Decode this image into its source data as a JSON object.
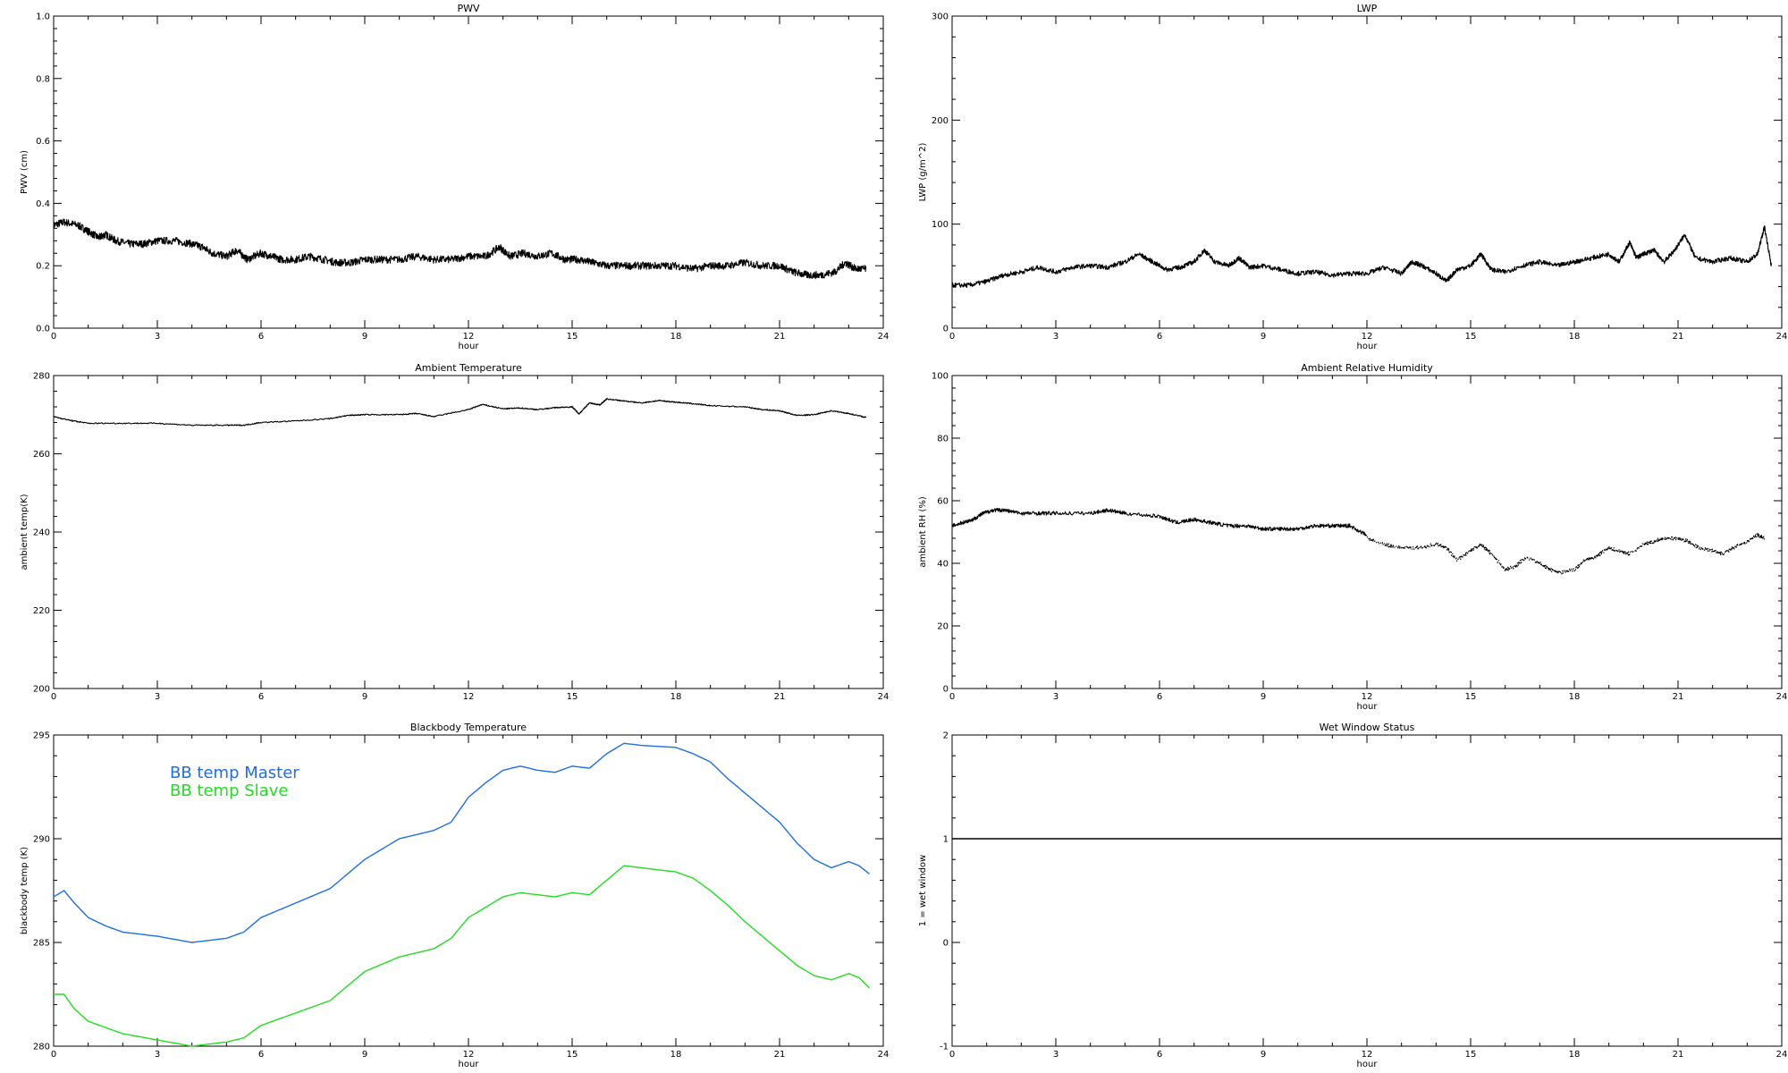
{
  "chart_data": [
    {
      "id": "pwv",
      "type": "line",
      "title": "PWV",
      "xlabel": "hour",
      "ylabel": "PWV (cm)",
      "xlim": [
        0,
        24
      ],
      "ylim": [
        0.0,
        1.0
      ],
      "xticks": [
        "0",
        "3",
        "6",
        "9",
        "12",
        "15",
        "18",
        "21",
        "24"
      ],
      "yticks": [
        "0.0",
        "0.2",
        "0.4",
        "0.6",
        "0.8",
        "1.0"
      ],
      "noise": 0.012,
      "series": [
        {
          "color": "#000000",
          "dots": false,
          "x": [
            0,
            0.3,
            0.7,
            1.0,
            1.3,
            1.5,
            1.8,
            2.2,
            2.6,
            3.0,
            3.5,
            4.0,
            4.3,
            4.6,
            5.0,
            5.3,
            5.6,
            6.0,
            6.3,
            6.6,
            7.0,
            7.4,
            7.8,
            8.2,
            8.6,
            9.0,
            9.5,
            10.0,
            10.5,
            11.0,
            11.5,
            12.0,
            12.5,
            12.9,
            13.2,
            13.6,
            14.0,
            14.4,
            14.8,
            15.2,
            15.6,
            16.0,
            16.5,
            17.0,
            17.5,
            18.0,
            18.5,
            19.0,
            19.5,
            20.0,
            20.5,
            21.0,
            21.4,
            21.8,
            22.2,
            22.6,
            22.9,
            23.2,
            23.5
          ],
          "y": [
            0.33,
            0.34,
            0.33,
            0.31,
            0.29,
            0.3,
            0.28,
            0.27,
            0.27,
            0.28,
            0.28,
            0.27,
            0.26,
            0.24,
            0.23,
            0.25,
            0.22,
            0.24,
            0.23,
            0.22,
            0.22,
            0.23,
            0.22,
            0.21,
            0.21,
            0.22,
            0.22,
            0.22,
            0.23,
            0.22,
            0.22,
            0.23,
            0.23,
            0.26,
            0.23,
            0.24,
            0.23,
            0.24,
            0.22,
            0.22,
            0.21,
            0.2,
            0.2,
            0.2,
            0.2,
            0.2,
            0.19,
            0.2,
            0.2,
            0.21,
            0.2,
            0.2,
            0.18,
            0.17,
            0.17,
            0.18,
            0.21,
            0.19,
            0.19
          ]
        }
      ]
    },
    {
      "id": "lwp",
      "type": "line",
      "title": "LWP",
      "xlabel": "hour",
      "ylabel": "LWP (g/m^2)",
      "xlim": [
        0,
        24
      ],
      "ylim": [
        -50,
        350
      ],
      "xticks": [
        "0",
        "3",
        "6",
        "9",
        "12",
        "15",
        "18",
        "21",
        "24"
      ],
      "yticks": [
        "0",
        "100",
        "200",
        "300"
      ],
      "noise": 3,
      "series": [
        {
          "color": "#000000",
          "dots": false,
          "x": [
            0,
            0.5,
            1.0,
            1.5,
            2.0,
            2.5,
            3.0,
            3.5,
            4.0,
            4.5,
            5.0,
            5.4,
            5.8,
            6.2,
            6.6,
            7.0,
            7.3,
            7.6,
            8.0,
            8.3,
            8.6,
            9.0,
            9.5,
            10.0,
            10.5,
            11.0,
            11.5,
            12.0,
            12.5,
            13.0,
            13.3,
            13.6,
            14.0,
            14.3,
            14.6,
            15.0,
            15.3,
            15.6,
            16.0,
            16.5,
            17.0,
            17.5,
            18.0,
            18.5,
            19.0,
            19.3,
            19.6,
            19.8,
            20.0,
            20.3,
            20.6,
            20.9,
            21.2,
            21.5,
            22.0,
            22.5,
            23.0,
            23.3,
            23.5,
            23.7
          ],
          "y": [
            5,
            5,
            10,
            18,
            22,
            28,
            22,
            28,
            30,
            28,
            35,
            45,
            35,
            25,
            28,
            35,
            50,
            35,
            30,
            40,
            28,
            30,
            25,
            20,
            22,
            18,
            20,
            20,
            28,
            20,
            35,
            30,
            20,
            10,
            25,
            30,
            45,
            25,
            22,
            30,
            35,
            30,
            35,
            40,
            45,
            35,
            60,
            40,
            45,
            50,
            35,
            50,
            70,
            40,
            35,
            40,
            35,
            45,
            80,
            30
          ]
        }
      ]
    },
    {
      "id": "ambient-temp",
      "type": "line",
      "title": "Ambient Temperature",
      "xlabel": "",
      "ylabel": "ambient temp(K)",
      "xlim": [
        0,
        24
      ],
      "ylim": [
        200,
        280
      ],
      "xticks": [
        "0",
        "3",
        "6",
        "9",
        "12",
        "15",
        "18",
        "21",
        "24"
      ],
      "yticks": [
        "200",
        "220",
        "240",
        "260",
        "280"
      ],
      "noise": 0.15,
      "series": [
        {
          "color": "#000000",
          "dots": false,
          "x": [
            0,
            0.5,
            1.0,
            2.0,
            3.0,
            4.0,
            5.0,
            5.5,
            6.0,
            7.0,
            8.0,
            8.5,
            9.0,
            10.0,
            10.5,
            11.0,
            12.0,
            12.4,
            13.0,
            13.5,
            14.0,
            14.5,
            15.0,
            15.2,
            15.5,
            15.8,
            16.0,
            16.5,
            17.0,
            17.5,
            18.0,
            18.5,
            19.0,
            20.0,
            20.5,
            21.0,
            21.5,
            22.0,
            22.5,
            23.0,
            23.5
          ],
          "y": [
            269.5,
            268.5,
            267.8,
            267.8,
            267.8,
            267.3,
            267.3,
            267.3,
            268.0,
            268.4,
            269.0,
            269.8,
            270.0,
            270.0,
            270.3,
            269.5,
            271.3,
            272.6,
            271.5,
            271.7,
            271.3,
            271.8,
            272.0,
            270.2,
            273.0,
            272.5,
            274.0,
            273.5,
            273.0,
            273.6,
            273.2,
            272.8,
            272.3,
            272.0,
            271.3,
            271.0,
            269.8,
            270.0,
            271.0,
            270.3,
            269.3
          ]
        }
      ]
    },
    {
      "id": "ambient-rh",
      "type": "line",
      "title": "Ambient Relative Humidity",
      "xlabel": "hour",
      "ylabel": "ambient RH (%)",
      "xlim": [
        0,
        24
      ],
      "ylim": [
        0,
        100
      ],
      "xticks": [
        "0",
        "3",
        "6",
        "9",
        "12",
        "15",
        "18",
        "21",
        "24"
      ],
      "yticks": [
        "0",
        "20",
        "40",
        "60",
        "80",
        "100"
      ],
      "noise": 0.6,
      "series": [
        {
          "color": "#000000",
          "dots": false,
          "x": [
            0,
            0.3,
            0.6,
            0.9,
            1.2,
            1.5,
            2.0,
            2.5,
            3.0,
            4.0,
            4.5,
            5.0,
            6.0,
            6.5,
            7.0,
            7.5,
            8.0,
            8.5,
            9.0,
            9.5,
            10.0,
            10.5,
            11.0,
            11.5,
            12.0
          ],
          "y": [
            52,
            53,
            54,
            56,
            57,
            57,
            56,
            56,
            56,
            56,
            57,
            56,
            55,
            53,
            54,
            53,
            52,
            52,
            51,
            51,
            51,
            52,
            52,
            52,
            49
          ]
        },
        {
          "color": "#000000",
          "dots": true,
          "x": [
            12,
            12.5,
            13,
            13.5,
            14,
            14.3,
            14.6,
            15,
            15.3,
            15.6,
            16,
            16.3,
            16.6,
            17,
            17.3,
            17.6,
            18,
            18.3,
            18.6,
            19,
            19.3,
            19.6,
            20,
            20.3,
            20.6,
            21,
            21.3,
            21.6,
            22,
            22.3,
            22.6,
            23,
            23.3,
            23.5
          ],
          "y": [
            48,
            46,
            45,
            45,
            46,
            45,
            41,
            44,
            46,
            43,
            38,
            39,
            42,
            40,
            38,
            37,
            38,
            41,
            42,
            45,
            44,
            43,
            46,
            47,
            48,
            48,
            47,
            45,
            44,
            43,
            45,
            47,
            49,
            48
          ]
        }
      ]
    },
    {
      "id": "blackbody-temp",
      "type": "line",
      "title": "Blackbody Temperature",
      "xlabel": "hour",
      "ylabel": "blackbody temp (K)",
      "xlim": [
        0,
        24
      ],
      "ylim": [
        280,
        295
      ],
      "xticks": [
        "0",
        "3",
        "6",
        "9",
        "12",
        "15",
        "18",
        "21",
        "24"
      ],
      "yticks": [
        "280",
        "285",
        "290",
        "295"
      ],
      "noise": 0,
      "legend": [
        "BB temp Master",
        "BB temp Slave"
      ],
      "series": [
        {
          "name": "BB temp Master",
          "color": "#1f6fe0",
          "dots": false,
          "x": [
            0,
            0.3,
            0.6,
            1.0,
            1.5,
            2.0,
            3.0,
            4.0,
            5.0,
            5.5,
            6.0,
            7.0,
            8.0,
            9.0,
            10.0,
            10.5,
            11.0,
            11.5,
            12.0,
            12.5,
            13.0,
            13.5,
            14.0,
            14.5,
            15.0,
            15.5,
            16.0,
            16.5,
            17.0,
            18.0,
            18.5,
            19.0,
            19.5,
            20.0,
            20.5,
            21.0,
            21.5,
            22.0,
            22.5,
            23.0,
            23.3,
            23.6
          ],
          "y": [
            287.2,
            287.5,
            286.9,
            286.2,
            285.8,
            285.5,
            285.3,
            285.0,
            285.2,
            285.5,
            286.2,
            286.9,
            287.6,
            289.0,
            290.0,
            290.2,
            290.4,
            290.8,
            292.0,
            292.7,
            293.3,
            293.5,
            293.3,
            293.2,
            293.5,
            293.4,
            294.1,
            294.6,
            294.5,
            294.4,
            294.1,
            293.7,
            292.9,
            292.2,
            291.5,
            290.8,
            289.8,
            289.0,
            288.6,
            288.9,
            288.7,
            288.3
          ]
        },
        {
          "name": "BB temp Slave",
          "color": "#22dd22",
          "dots": false,
          "x": [
            0,
            0.3,
            0.6,
            1.0,
            1.5,
            2.0,
            3.0,
            4.0,
            5.0,
            5.5,
            6.0,
            7.0,
            8.0,
            9.0,
            10.0,
            10.5,
            11.0,
            11.5,
            12.0,
            12.5,
            13.0,
            13.5,
            14.0,
            14.5,
            15.0,
            15.5,
            16.0,
            16.5,
            17.0,
            18.0,
            18.5,
            19.0,
            19.5,
            20.0,
            20.5,
            21.0,
            21.5,
            22.0,
            22.5,
            23.0,
            23.3,
            23.6
          ],
          "y": [
            282.5,
            282.5,
            281.8,
            281.2,
            280.9,
            280.6,
            280.3,
            280.0,
            280.2,
            280.4,
            281.0,
            281.6,
            282.2,
            283.6,
            284.3,
            284.5,
            284.7,
            285.2,
            286.2,
            286.7,
            287.2,
            287.4,
            287.3,
            287.2,
            287.4,
            287.3,
            288.0,
            288.7,
            288.6,
            288.4,
            288.1,
            287.5,
            286.8,
            286.0,
            285.3,
            284.6,
            283.9,
            283.4,
            283.2,
            283.5,
            283.3,
            282.8
          ]
        }
      ]
    },
    {
      "id": "wet-window",
      "type": "line",
      "title": "Wet Window Status",
      "xlabel": "hour",
      "ylabel": "1 = wet window",
      "xlim": [
        0,
        24
      ],
      "ylim": [
        -1,
        2
      ],
      "xticks": [
        "0",
        "3",
        "6",
        "9",
        "12",
        "15",
        "18",
        "21",
        "24"
      ],
      "yticks": [
        "-1",
        "0",
        "1",
        "2"
      ],
      "noise": 0,
      "series": [
        {
          "color": "#000000",
          "dots": false,
          "x": [
            0,
            24
          ],
          "y": [
            1,
            1
          ]
        }
      ]
    }
  ]
}
